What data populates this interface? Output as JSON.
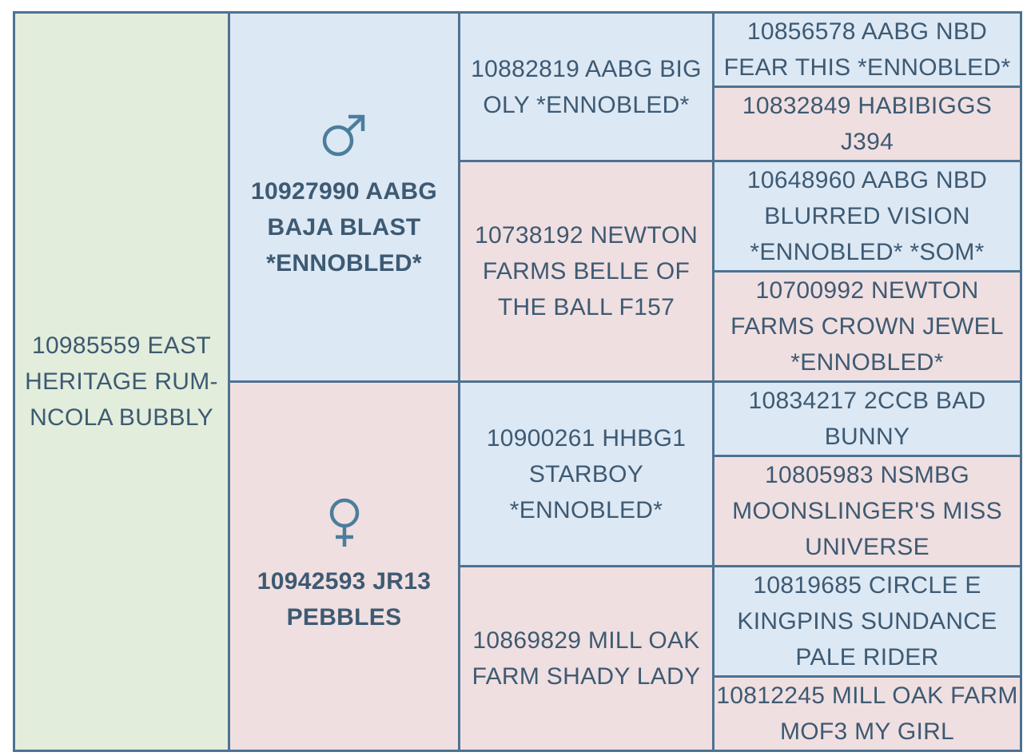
{
  "subject": {
    "name": "10985559 EAST HERITAGE RUM-NCOLA BUBBLY"
  },
  "sire": {
    "name": "10927990 AABG BAJA BLAST *ENNOBLED*",
    "sex_icon": "male-icon",
    "sire": {
      "name": "10882819 AABG BIG OLY *ENNOBLED*",
      "sire": {
        "name": "10856578 AABG NBD FEAR THIS *ENNOBLED*"
      },
      "dam": {
        "name": "10832849 HABIBIGGS J394"
      }
    },
    "dam": {
      "name": "10738192 NEWTON FARMS BELLE OF THE BALL F157",
      "sire": {
        "name": "10648960 AABG NBD BLURRED VISION *ENNOBLED* *SOM*"
      },
      "dam": {
        "name": "10700992 NEWTON FARMS CROWN JEWEL *ENNOBLED*"
      }
    }
  },
  "dam": {
    "name": "10942593 JR13 PEBBLES",
    "sex_icon": "female-icon",
    "sire": {
      "name": "10900261 HHBG1 STARBOY *ENNOBLED*",
      "sire": {
        "name": "10834217 2CCB BAD BUNNY"
      },
      "dam": {
        "name": "10805983 NSMBG MOONSLINGER'S MISS UNIVERSE"
      }
    },
    "dam": {
      "name": "10869829 MILL OAK FARM SHADY LADY",
      "sire": {
        "name": "10819685 CIRCLE E KINGPINS SUNDANCE PALE RIDER"
      },
      "dam": {
        "name": "10812245 MILL OAK FARM MOF3 MY GIRL"
      }
    }
  },
  "colors": {
    "subject_bg": "#e2eddb",
    "male_bg": "#dce8f4",
    "female_bg": "#f0dfe0",
    "border": "#4d7292",
    "text": "#3d5a73",
    "icon": "#4a7e9c"
  }
}
